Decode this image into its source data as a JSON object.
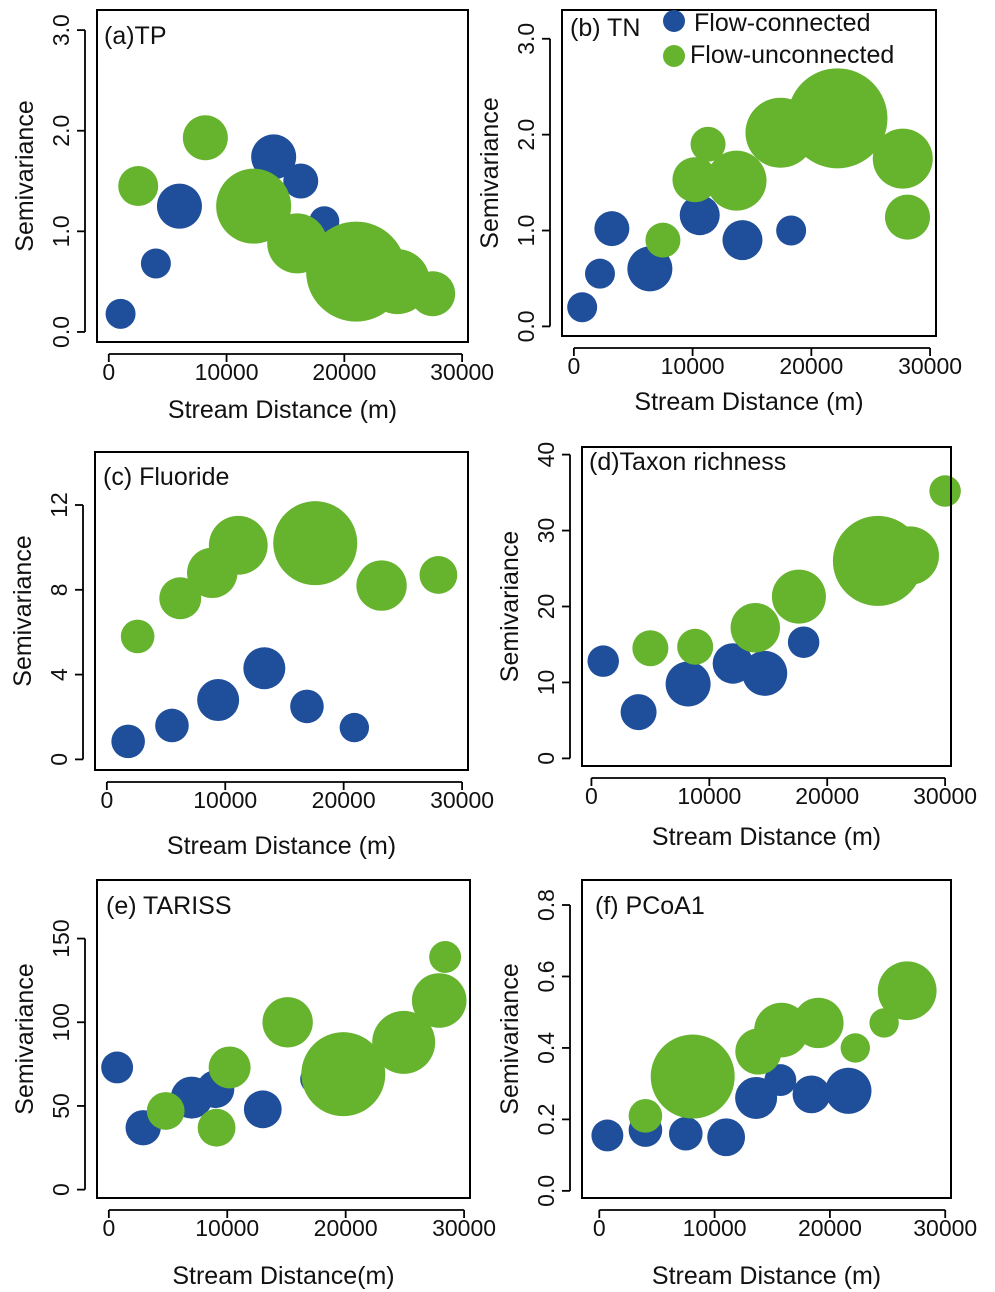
{
  "legend": {
    "items": [
      {
        "label": "Flow-connected",
        "color": "#1f4e9b"
      },
      {
        "label": "Flow-unconnected",
        "color": "#66b32e"
      }
    ]
  },
  "colors": {
    "connected": "#1f4e9b",
    "unconnected": "#66b32e"
  },
  "chart_data": [
    {
      "type": "scatter",
      "title": "(a)TP",
      "xlabel": "Stream Distance (m)",
      "ylabel": "Semivariance",
      "xlim": [
        -1000,
        30500
      ],
      "ylim": [
        -0.1,
        3.2
      ],
      "xticks": [
        "0",
        "10000",
        "20000",
        "30000"
      ],
      "yticks": [
        "0.0",
        "1.0",
        "2.0",
        "3.0"
      ],
      "series": [
        {
          "name": "Flow-connected",
          "points": [
            {
              "x": 1000,
              "y": 0.18,
              "size": 0.3
            },
            {
              "x": 4000,
              "y": 0.68,
              "size": 0.3
            },
            {
              "x": 6000,
              "y": 1.25,
              "size": 0.45
            },
            {
              "x": 14000,
              "y": 1.74,
              "size": 0.45
            },
            {
              "x": 16300,
              "y": 1.5,
              "size": 0.35
            },
            {
              "x": 18300,
              "y": 1.1,
              "size": 0.3
            }
          ]
        },
        {
          "name": "Flow-unconnected",
          "points": [
            {
              "x": 2500,
              "y": 1.45,
              "size": 0.4
            },
            {
              "x": 8200,
              "y": 1.93,
              "size": 0.45
            },
            {
              "x": 12300,
              "y": 1.25,
              "size": 0.75
            },
            {
              "x": 16000,
              "y": 0.88,
              "size": 0.6
            },
            {
              "x": 21000,
              "y": 0.6,
              "size": 1.0
            },
            {
              "x": 24500,
              "y": 0.5,
              "size": 0.65
            },
            {
              "x": 27500,
              "y": 0.38,
              "size": 0.45
            }
          ]
        }
      ]
    },
    {
      "type": "scatter",
      "title": "(b) TN",
      "xlabel": "Stream Distance (m)",
      "ylabel": "Semivariance",
      "xlim": [
        -1000,
        30500
      ],
      "ylim": [
        -0.1,
        3.3
      ],
      "xticks": [
        "0",
        "10000",
        "20000",
        "30000"
      ],
      "yticks": [
        "0.0",
        "1.0",
        "2.0",
        "3.0"
      ],
      "series": [
        {
          "name": "Flow-connected",
          "points": [
            {
              "x": 700,
              "y": 0.2,
              "size": 0.3
            },
            {
              "x": 2200,
              "y": 0.55,
              "size": 0.3
            },
            {
              "x": 3200,
              "y": 1.02,
              "size": 0.35
            },
            {
              "x": 6400,
              "y": 0.6,
              "size": 0.45
            },
            {
              "x": 10600,
              "y": 1.16,
              "size": 0.4
            },
            {
              "x": 14200,
              "y": 0.9,
              "size": 0.4
            },
            {
              "x": 18300,
              "y": 1.0,
              "size": 0.3
            }
          ]
        },
        {
          "name": "Flow-unconnected",
          "points": [
            {
              "x": 7500,
              "y": 0.9,
              "size": 0.35
            },
            {
              "x": 10200,
              "y": 1.53,
              "size": 0.45
            },
            {
              "x": 11300,
              "y": 1.9,
              "size": 0.35
            },
            {
              "x": 13700,
              "y": 1.52,
              "size": 0.6
            },
            {
              "x": 17400,
              "y": 2.02,
              "size": 0.7
            },
            {
              "x": 22200,
              "y": 2.17,
              "size": 1.0
            },
            {
              "x": 27700,
              "y": 1.75,
              "size": 0.6
            },
            {
              "x": 28100,
              "y": 1.14,
              "size": 0.45
            }
          ]
        }
      ]
    },
    {
      "type": "scatter",
      "title": "(c) Fluoride",
      "xlabel": "Stream Distance (m)",
      "ylabel": "Semivariance",
      "xlim": [
        -1000,
        30500
      ],
      "ylim": [
        -0.5,
        14.5
      ],
      "xticks": [
        "0",
        "10000",
        "20000",
        "30000"
      ],
      "yticks": [
        "0",
        "4",
        "8",
        "12"
      ],
      "series": [
        {
          "name": "Flow-connected",
          "points": [
            {
              "x": 1800,
              "y": 0.85,
              "size": 0.4
            },
            {
              "x": 5500,
              "y": 1.6,
              "size": 0.4
            },
            {
              "x": 9400,
              "y": 2.8,
              "size": 0.5
            },
            {
              "x": 13300,
              "y": 4.3,
              "size": 0.5
            },
            {
              "x": 16900,
              "y": 2.5,
              "size": 0.4
            },
            {
              "x": 20900,
              "y": 1.5,
              "size": 0.35
            }
          ]
        },
        {
          "name": "Flow-unconnected",
          "points": [
            {
              "x": 2600,
              "y": 5.8,
              "size": 0.4
            },
            {
              "x": 6200,
              "y": 7.6,
              "size": 0.5
            },
            {
              "x": 8900,
              "y": 8.8,
              "size": 0.6
            },
            {
              "x": 11100,
              "y": 10.1,
              "size": 0.7
            },
            {
              "x": 17600,
              "y": 10.2,
              "size": 1.0
            },
            {
              "x": 23200,
              "y": 8.2,
              "size": 0.6
            },
            {
              "x": 28000,
              "y": 8.7,
              "size": 0.45
            }
          ]
        }
      ]
    },
    {
      "type": "scatter",
      "title": "(d)Taxon richness",
      "xlabel": "Stream Distance (m)",
      "ylabel": "Semivariance",
      "xlim": [
        -800,
        30500
      ],
      "ylim": [
        -1,
        41
      ],
      "xticks": [
        "0",
        "10000",
        "20000",
        "30000"
      ],
      "yticks": [
        "0",
        "10",
        "20",
        "30",
        "40"
      ],
      "series": [
        {
          "name": "Flow-connected",
          "points": [
            {
              "x": 1000,
              "y": 12.8,
              "size": 0.35
            },
            {
              "x": 4000,
              "y": 6.1,
              "size": 0.4
            },
            {
              "x": 8200,
              "y": 9.8,
              "size": 0.5
            },
            {
              "x": 12000,
              "y": 12.5,
              "size": 0.45
            },
            {
              "x": 14700,
              "y": 11.2,
              "size": 0.5
            },
            {
              "x": 18000,
              "y": 15.3,
              "size": 0.35
            }
          ]
        },
        {
          "name": "Flow-unconnected",
          "points": [
            {
              "x": 5000,
              "y": 14.5,
              "size": 0.4
            },
            {
              "x": 8800,
              "y": 14.7,
              "size": 0.4
            },
            {
              "x": 13900,
              "y": 17.2,
              "size": 0.55
            },
            {
              "x": 17600,
              "y": 21.3,
              "size": 0.6
            },
            {
              "x": 24300,
              "y": 26.0,
              "size": 1.0
            },
            {
              "x": 27000,
              "y": 26.7,
              "size": 0.65
            },
            {
              "x": 30000,
              "y": 35.2,
              "size": 0.35
            }
          ]
        }
      ]
    },
    {
      "type": "scatter",
      "title": "(e) TARISS",
      "xlabel": "Stream Distance(m)",
      "ylabel": "Semivariance",
      "xlim": [
        -1000,
        30500
      ],
      "ylim": [
        -5,
        185
      ],
      "xticks": [
        "0",
        "10000",
        "20000",
        "30000"
      ],
      "yticks": [
        "0",
        "50",
        "100",
        "150"
      ],
      "series": [
        {
          "name": "Flow-connected",
          "points": [
            {
              "x": 700,
              "y": 73,
              "size": 0.38
            },
            {
              "x": 2900,
              "y": 37,
              "size": 0.42
            },
            {
              "x": 7000,
              "y": 55,
              "size": 0.5
            },
            {
              "x": 9000,
              "y": 60,
              "size": 0.45
            },
            {
              "x": 13000,
              "y": 48,
              "size": 0.45
            },
            {
              "x": 17400,
              "y": 66,
              "size": 0.35
            }
          ]
        },
        {
          "name": "Flow-unconnected",
          "points": [
            {
              "x": 4800,
              "y": 47,
              "size": 0.45
            },
            {
              "x": 9100,
              "y": 37,
              "size": 0.45
            },
            {
              "x": 10200,
              "y": 73,
              "size": 0.5
            },
            {
              "x": 15100,
              "y": 100,
              "size": 0.6
            },
            {
              "x": 19800,
              "y": 69,
              "size": 1.0
            },
            {
              "x": 24900,
              "y": 88,
              "size": 0.75
            },
            {
              "x": 27900,
              "y": 113,
              "size": 0.65
            },
            {
              "x": 28400,
              "y": 139,
              "size": 0.38
            }
          ]
        }
      ]
    },
    {
      "type": "scatter",
      "title": "(f) PCoA1",
      "xlabel": "Stream Distance (m)",
      "ylabel": "Semivariance",
      "xlim": [
        -1500,
        30500
      ],
      "ylim": [
        -0.02,
        0.87
      ],
      "xticks": [
        "0",
        "10000",
        "20000",
        "30000"
      ],
      "yticks": [
        "0.0",
        "0.2",
        "0.4",
        "0.6",
        "0.8"
      ],
      "series": [
        {
          "name": "Flow-connected",
          "points": [
            {
              "x": 700,
              "y": 0.155,
              "size": 0.38
            },
            {
              "x": 4000,
              "y": 0.17,
              "size": 0.4
            },
            {
              "x": 7500,
              "y": 0.16,
              "size": 0.4
            },
            {
              "x": 11000,
              "y": 0.15,
              "size": 0.45
            },
            {
              "x": 13600,
              "y": 0.26,
              "size": 0.5
            },
            {
              "x": 15700,
              "y": 0.31,
              "size": 0.38
            },
            {
              "x": 18400,
              "y": 0.27,
              "size": 0.45
            },
            {
              "x": 21600,
              "y": 0.28,
              "size": 0.55
            }
          ]
        },
        {
          "name": "Flow-unconnected",
          "points": [
            {
              "x": 4000,
              "y": 0.21,
              "size": 0.4
            },
            {
              "x": 8100,
              "y": 0.32,
              "size": 1.0
            },
            {
              "x": 13800,
              "y": 0.39,
              "size": 0.55
            },
            {
              "x": 15800,
              "y": 0.45,
              "size": 0.65
            },
            {
              "x": 19000,
              "y": 0.47,
              "size": 0.6
            },
            {
              "x": 22200,
              "y": 0.4,
              "size": 0.35
            },
            {
              "x": 24700,
              "y": 0.47,
              "size": 0.35
            },
            {
              "x": 26700,
              "y": 0.56,
              "size": 0.7
            }
          ]
        }
      ]
    }
  ]
}
